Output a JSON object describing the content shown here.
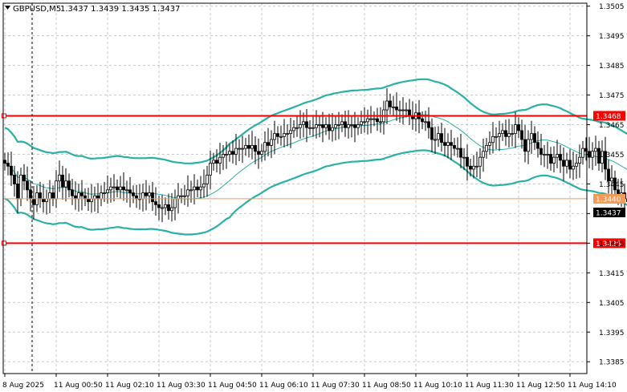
{
  "window": {
    "symbol_label": "GBPUSD,M5",
    "ohlc_label": "1.3437 1.3439 1.3435 1.3437"
  },
  "chart_data": {
    "type": "candlestick",
    "symbol": "GBPUSD",
    "timeframe": "M5",
    "ylim": [
      1.3381,
      1.3506
    ],
    "y_ticks": [
      "1.3505",
      "1.3495",
      "1.3485",
      "1.3475",
      "1.3465",
      "1.3455",
      "1.3445",
      "1.3435",
      "1.3425",
      "1.3415",
      "1.3405",
      "1.3395",
      "1.3385"
    ],
    "x_ticks": [
      "8 Aug 2025",
      "11 Aug 00:50",
      "11 Aug 02:10",
      "11 Aug 03:30",
      "11 Aug 04:50",
      "11 Aug 06:10",
      "11 Aug 07:30",
      "11 Aug 08:50",
      "11 Aug 10:10",
      "11 Aug 11:30",
      "11 Aug 12:50",
      "11 Aug 14:10"
    ],
    "x_tick_index": [
      0,
      16,
      32,
      48,
      64,
      80,
      96,
      112,
      128,
      144,
      160,
      176
    ],
    "grid": true,
    "close": [
      1.3452,
      1.3451,
      1.3448,
      1.3445,
      1.344,
      1.3448,
      1.3446,
      1.3443,
      1.344,
      1.3438,
      1.3442,
      1.344,
      1.3439,
      1.344,
      1.3442,
      1.344,
      1.3446,
      1.3448,
      1.3444,
      1.3446,
      1.3443,
      1.3441,
      1.344,
      1.3442,
      1.3441,
      1.344,
      1.3439,
      1.344,
      1.3441,
      1.344,
      1.3442,
      1.3442,
      1.3443,
      1.3444,
      1.3444,
      1.3443,
      1.3444,
      1.3443,
      1.3443,
      1.3442,
      1.3441,
      1.344,
      1.344,
      1.3442,
      1.3441,
      1.3442,
      1.3439,
      1.3438,
      1.3437,
      1.3437,
      1.3438,
      1.3436,
      1.3437,
      1.344,
      1.3441,
      1.3441,
      1.3441,
      1.3443,
      1.3443,
      1.3444,
      1.3443,
      1.3444,
      1.3445,
      1.3448,
      1.3452,
      1.3453,
      1.3452,
      1.3454,
      1.3455,
      1.3455,
      1.3456,
      1.3455,
      1.3457,
      1.3457,
      1.3457,
      1.3458,
      1.3457,
      1.3458,
      1.3456,
      1.3455,
      1.3456,
      1.3459,
      1.3458,
      1.346,
      1.3462,
      1.3461,
      1.3461,
      1.3462,
      1.3462,
      1.3463,
      1.3464,
      1.3464,
      1.3465,
      1.3466,
      1.3464,
      1.3464,
      1.3464,
      1.3465,
      1.3465,
      1.3464,
      1.3465,
      1.3463,
      1.3464,
      1.3465,
      1.3465,
      1.3466,
      1.3464,
      1.3465,
      1.3465,
      1.3464,
      1.3465,
      1.3466,
      1.3466,
      1.3467,
      1.3467,
      1.3467,
      1.3466,
      1.3466,
      1.347,
      1.3473,
      1.3471,
      1.3471,
      1.347,
      1.347,
      1.347,
      1.347,
      1.3468,
      1.3467,
      1.3469,
      1.3467,
      1.3466,
      1.3466,
      1.3464,
      1.346,
      1.346,
      1.3462,
      1.3459,
      1.3458,
      1.3459,
      1.3458,
      1.3457,
      1.3457,
      1.3454,
      1.3454,
      1.3451,
      1.345,
      1.3451,
      1.3451,
      1.3454,
      1.3456,
      1.3458,
      1.3459,
      1.3461,
      1.3461,
      1.3462,
      1.3463,
      1.3461,
      1.3462,
      1.3462,
      1.3465,
      1.3463,
      1.346,
      1.3456,
      1.346,
      1.3462,
      1.3459,
      1.3457,
      1.3455,
      1.3455,
      1.3455,
      1.3452,
      1.3454,
      1.3455,
      1.3453,
      1.3451,
      1.3453,
      1.345,
      1.3451,
      1.3452,
      1.3454,
      1.3457,
      1.3456,
      1.3454,
      1.3456,
      1.3457,
      1.3452,
      1.3456,
      1.345,
      1.3446,
      1.3447,
      1.3443,
      1.3441,
      1.3442,
      1.344,
      1.3439,
      1.3437
    ],
    "bollinger": {
      "period": 20,
      "color": "#2ab1a6"
    },
    "horizontal_lines": [
      {
        "price": 1.3468,
        "label": "1.3468",
        "color": "#ff0000"
      },
      {
        "price": 1.3425,
        "label": "1.3425",
        "color": "#ff0000"
      },
      {
        "price": 1.344,
        "label": "1.3440",
        "color": "#f39a57"
      }
    ],
    "current_price": {
      "price": 1.3437,
      "label": "1.3437"
    },
    "period_separator_index": 9
  }
}
